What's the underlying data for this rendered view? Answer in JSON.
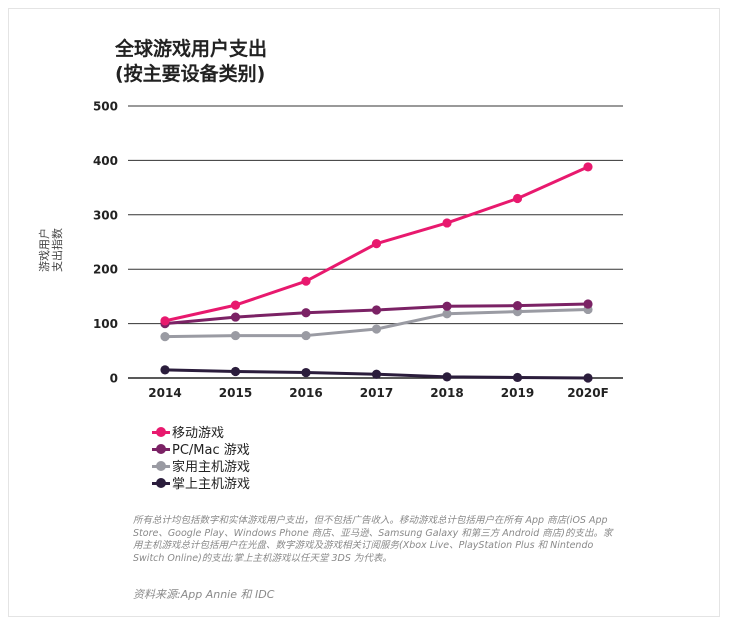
{
  "title": "全球游戏用户支出",
  "subtitle": "(按主要设备类别)",
  "note": "所有总计均包括数字和实体游戏用户支出，但不包括广告收入。移动游戏总计包括用户在所有 App 商店(iOS App Store、Google Play、Windows Phone 商店、亚马逊、Samsung Galaxy 和第三方 Android 商店)的支出。家用主机游戏总计包括用户在光盘、数字游戏及游戏相关订阅服务(Xbox Live、PlayStation Plus 和 Nintendo Switch Online)的支出;掌上主机游戏以任天堂 3DS 为代表。",
  "source": "资料来源:App Annie 和 IDC",
  "chart_data": {
    "type": "line",
    "title": "全球游戏用户支出 (按主要设备类别)",
    "xlabel": "",
    "ylabel": "游戏用户支出指数",
    "ylabel_lines": [
      "游戏用户",
      "支出指数"
    ],
    "categories": [
      "2014",
      "2015",
      "2016",
      "2017",
      "2018",
      "2019",
      "2020F"
    ],
    "yticks": [
      "0",
      "100",
      "200",
      "300",
      "400",
      "500"
    ],
    "ylim": [
      0,
      500
    ],
    "grid": true,
    "legend_position": "bottom-left",
    "series": [
      {
        "name": "移动游戏",
        "color": "#e8196e",
        "values": [
          105,
          134,
          178,
          247,
          285,
          330,
          388
        ]
      },
      {
        "name": "PC/Mac 游戏",
        "color": "#7b2265",
        "values": [
          100,
          112,
          120,
          125,
          132,
          133,
          136
        ]
      },
      {
        "name": "家用主机游戏",
        "color": "#9a9ba3",
        "values": [
          76,
          78,
          78,
          90,
          118,
          122,
          126
        ]
      },
      {
        "name": "掌上主机游戏",
        "color": "#2b1d3c",
        "values": [
          15,
          12,
          10,
          7,
          2,
          1,
          0
        ]
      }
    ]
  }
}
